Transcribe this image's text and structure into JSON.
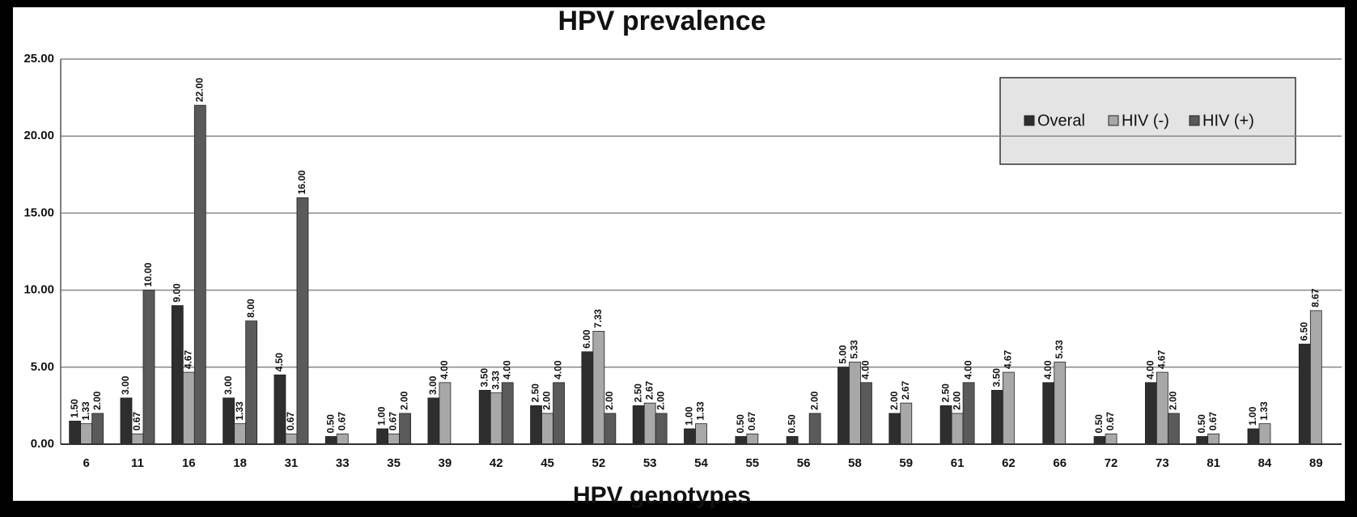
{
  "chart_data": {
    "type": "bar",
    "title": "HPV prevalence",
    "x_label": "HPV genotypes",
    "categories": [
      "6",
      "11",
      "16",
      "18",
      "31",
      "33",
      "35",
      "39",
      "42",
      "45",
      "52",
      "53",
      "54",
      "55",
      "56",
      "58",
      "59",
      "61",
      "62",
      "66",
      "72",
      "73",
      "81",
      "84",
      "89"
    ],
    "series": [
      {
        "name": "Overal",
        "color": "#2e2e2e",
        "values": [
          1.5,
          3,
          9,
          3,
          4.5,
          0.5,
          1,
          3,
          3.5,
          2.5,
          6,
          2.5,
          1,
          0.5,
          0.5,
          5,
          2,
          2.5,
          3.5,
          4,
          0.5,
          4,
          0.5,
          1,
          6.5
        ],
        "value_labels": [
          "1.50",
          "3.00",
          "9.00",
          "3.00",
          "4.50",
          "0.50",
          "1.00",
          "3.00",
          "3.50",
          "2.50",
          "6.00",
          "2.50",
          "1.00",
          "0.50",
          "0.50",
          "5.00",
          "2.00",
          "2.50",
          "3.50",
          "4.00",
          "0.50",
          "4.00",
          "0.50",
          "1.00",
          "6.50"
        ]
      },
      {
        "name": "HIV (-)",
        "color": "#a8a8a8",
        "values": [
          1.33,
          0.67,
          4.67,
          1.33,
          0.67,
          0.67,
          0.67,
          4,
          3.33,
          2,
          7.33,
          2.67,
          1.33,
          0.67,
          null,
          5.33,
          2.67,
          2,
          4.67,
          5.33,
          0.67,
          4.67,
          0.67,
          1.33,
          8.67
        ],
        "value_labels": [
          "1.33",
          "0.67",
          "4.67",
          "1.33",
          "0.67",
          "0.67",
          "0.67",
          "4.00",
          "3.33",
          "2.00",
          "7.33",
          "2.67",
          "1.33",
          "0.67",
          null,
          "5.33",
          "2.67",
          "2.00",
          "4.67",
          "5.33",
          "0.67",
          "4.67",
          "0.67",
          "1.33",
          "8.67"
        ]
      },
      {
        "name": "HIV (+)",
        "color": "#5a5a5a",
        "values": [
          2,
          10,
          22,
          8,
          16,
          null,
          2,
          null,
          4,
          4,
          2,
          2,
          null,
          null,
          2,
          4,
          null,
          4,
          null,
          null,
          null,
          2,
          null,
          null,
          null
        ],
        "value_labels": [
          "2.00",
          "10.00",
          "22.00",
          "8.00",
          "16.00",
          null,
          "2.00",
          null,
          "4.00",
          "4.00",
          "2.00",
          "2.00",
          null,
          null,
          "2.00",
          "4.00",
          null,
          "4.00",
          null,
          null,
          null,
          "2.00",
          null,
          null,
          null
        ]
      }
    ],
    "ylim": [
      0,
      25
    ],
    "yticks": [
      {
        "value": 0,
        "label": "0.00"
      },
      {
        "value": 5,
        "label": "5.00"
      },
      {
        "value": 10,
        "label": "10.00"
      },
      {
        "value": 15,
        "label": "15.00"
      },
      {
        "value": 20,
        "label": "20.00"
      },
      {
        "value": 25,
        "label": "25.00"
      }
    ],
    "grid": true,
    "legend": "upper right"
  }
}
